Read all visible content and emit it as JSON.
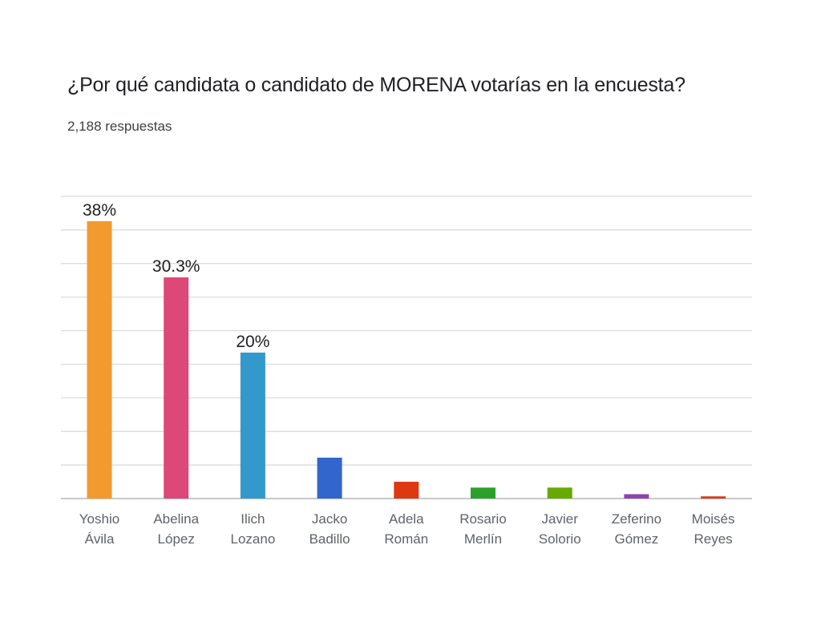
{
  "header": {
    "title": "¿Por qué candidata o candidato de MORENA votarías en la encuesta?",
    "subtitle": "2,188 respuestas"
  },
  "chart_data": {
    "type": "bar",
    "categories": [
      [
        "Yoshio",
        "Ávila"
      ],
      [
        "Abelina",
        "López"
      ],
      [
        "Ilich",
        "Lozano"
      ],
      [
        "Jacko",
        "Badillo"
      ],
      [
        "Adela",
        "Román"
      ],
      [
        "Rosario",
        "Merlín"
      ],
      [
        "Javier",
        "Solorio"
      ],
      [
        "Zeferino",
        "Gómez"
      ],
      [
        "Moisés",
        "Reyes"
      ]
    ],
    "values": [
      38,
      30.3,
      20,
      5.6,
      2.3,
      1.5,
      1.5,
      0.6,
      0.3
    ],
    "data_labels": [
      "38%",
      "30.3%",
      "20%",
      "",
      "",
      "",
      "",
      "",
      ""
    ],
    "colors": [
      "#f29a2e",
      "#dc4878",
      "#3399cc",
      "#3366cc",
      "#dc3912",
      "#2ca02c",
      "#66aa00",
      "#8e44ad",
      "#dc3912"
    ],
    "ylim": [
      0,
      41.4
    ],
    "grid": true,
    "gridlines": 9
  }
}
